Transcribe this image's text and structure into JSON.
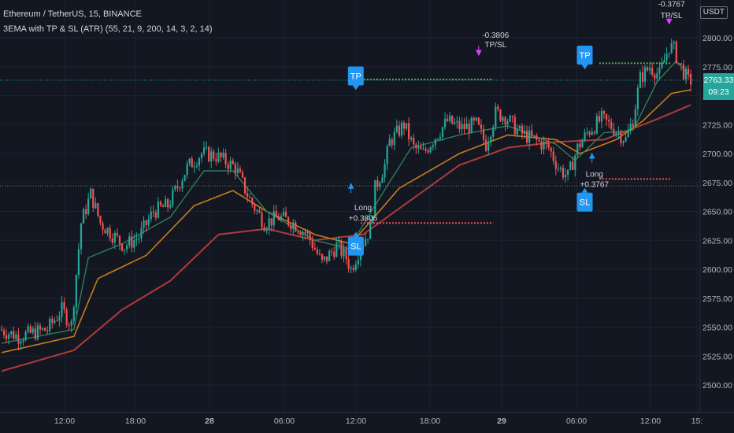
{
  "header": {
    "symbol": "Ethereum / TetherUS, 15, BINANCE",
    "indicator": "3EMA with TP & SL (ATR) (55, 21, 9, 200, 14, 3, 2, 14)"
  },
  "currency_badge": "USDT",
  "price_box": {
    "price": "2763.33",
    "countdown": "09:23"
  },
  "colors": {
    "background": "#131722",
    "up": "#26a69a",
    "down": "#ef5350",
    "ema_fast": "#2e7d5b",
    "ema_mid": "#c77b1c",
    "ema_slow": "#b03a3a",
    "signal": "#2196f3",
    "tp_line": "#4caf50",
    "sl_line": "#ef5350"
  },
  "chart_data": {
    "type": "candlestick",
    "title": "Ethereum / TetherUS, 15, BINANCE",
    "ylim": [
      2490,
      2822
    ],
    "y_ticks": [
      "2800.00",
      "2775.00",
      "2750.00",
      "2725.00",
      "2700.00",
      "2675.00",
      "2650.00",
      "2625.00",
      "2600.00",
      "2575.00",
      "2550.00",
      "2525.00",
      "2500.00"
    ],
    "x_ticks": [
      "12:00",
      "18:00",
      "28",
      "06:00",
      "12:00",
      "18:00",
      "29",
      "06:00",
      "12:00",
      "15:"
    ],
    "anchors": [
      [
        0,
        2548
      ],
      [
        8,
        2542
      ],
      [
        14,
        2545
      ],
      [
        20,
        2548
      ],
      [
        26,
        2565
      ],
      [
        30,
        2552
      ],
      [
        34,
        2640
      ],
      [
        38,
        2665
      ],
      [
        42,
        2640
      ],
      [
        46,
        2632
      ],
      [
        52,
        2620
      ],
      [
        58,
        2628
      ],
      [
        64,
        2650
      ],
      [
        70,
        2655
      ],
      [
        78,
        2688
      ],
      [
        84,
        2700
      ],
      [
        90,
        2698
      ],
      [
        98,
        2688
      ],
      [
        104,
        2660
      ],
      [
        110,
        2640
      ],
      [
        116,
        2645
      ],
      [
        122,
        2640
      ],
      [
        128,
        2630
      ],
      [
        134,
        2605
      ],
      [
        140,
        2620
      ],
      [
        144,
        2610
      ],
      [
        146,
        2600
      ],
      [
        150,
        2620
      ],
      [
        154,
        2635
      ],
      [
        156,
        2670
      ],
      [
        160,
        2690
      ],
      [
        162,
        2710
      ],
      [
        168,
        2725
      ],
      [
        172,
        2705
      ],
      [
        176,
        2700
      ],
      [
        180,
        2712
      ],
      [
        186,
        2728
      ],
      [
        192,
        2722
      ],
      [
        198,
        2725
      ],
      [
        202,
        2708
      ],
      [
        206,
        2735
      ],
      [
        210,
        2732
      ],
      [
        216,
        2718
      ],
      [
        222,
        2712
      ],
      [
        228,
        2705
      ],
      [
        232,
        2688
      ],
      [
        236,
        2680
      ],
      [
        240,
        2705
      ],
      [
        244,
        2718
      ],
      [
        250,
        2730
      ],
      [
        256,
        2720
      ],
      [
        260,
        2712
      ],
      [
        263,
        2730
      ],
      [
        266,
        2765
      ],
      [
        270,
        2775
      ],
      [
        274,
        2768
      ],
      [
        278,
        2793
      ],
      [
        280,
        2790
      ],
      [
        282,
        2778
      ],
      [
        286,
        2763
      ]
    ],
    "ema_fast": [
      [
        0,
        2536
      ],
      [
        30,
        2548
      ],
      [
        36,
        2610
      ],
      [
        50,
        2622
      ],
      [
        70,
        2645
      ],
      [
        84,
        2685
      ],
      [
        96,
        2685
      ],
      [
        110,
        2650
      ],
      [
        130,
        2625
      ],
      [
        144,
        2618
      ],
      [
        160,
        2672
      ],
      [
        170,
        2705
      ],
      [
        190,
        2716
      ],
      [
        210,
        2724
      ],
      [
        230,
        2708
      ],
      [
        238,
        2694
      ],
      [
        250,
        2718
      ],
      [
        262,
        2720
      ],
      [
        272,
        2762
      ],
      [
        280,
        2780
      ],
      [
        286,
        2766
      ]
    ],
    "ema_mid": [
      [
        0,
        2528
      ],
      [
        30,
        2542
      ],
      [
        40,
        2592
      ],
      [
        60,
        2612
      ],
      [
        80,
        2655
      ],
      [
        96,
        2668
      ],
      [
        110,
        2650
      ],
      [
        130,
        2630
      ],
      [
        145,
        2622
      ],
      [
        165,
        2670
      ],
      [
        190,
        2700
      ],
      [
        210,
        2716
      ],
      [
        230,
        2712
      ],
      [
        240,
        2700
      ],
      [
        255,
        2712
      ],
      [
        266,
        2728
      ],
      [
        278,
        2752
      ],
      [
        286,
        2755
      ]
    ],
    "ema_slow": [
      [
        0,
        2512
      ],
      [
        30,
        2530
      ],
      [
        50,
        2565
      ],
      [
        70,
        2590
      ],
      [
        90,
        2630
      ],
      [
        110,
        2635
      ],
      [
        130,
        2625
      ],
      [
        150,
        2630
      ],
      [
        170,
        2660
      ],
      [
        190,
        2690
      ],
      [
        210,
        2705
      ],
      [
        230,
        2710
      ],
      [
        250,
        2712
      ],
      [
        270,
        2728
      ],
      [
        286,
        2742
      ]
    ],
    "current_price": 2763.33,
    "price_line": 2672,
    "signals": [
      {
        "label": "TP",
        "bar": 147,
        "price": 2767
      },
      {
        "label": "SL",
        "bar": 147,
        "price": 2620
      },
      {
        "label": "TP",
        "bar": 242,
        "price": 2785
      },
      {
        "label": "SL",
        "bar": 242,
        "price": 2658
      }
    ],
    "annotations": [
      {
        "text": "Long",
        "bar": 150,
        "price": 2651
      },
      {
        "text": "+0.3806",
        "bar": 150,
        "price": 2642
      },
      {
        "text": "-0.3806",
        "bar": 205,
        "price": 2800
      },
      {
        "text": "TP/SL",
        "bar": 205,
        "price": 2792
      },
      {
        "text": "Long",
        "bar": 246,
        "price": 2680
      },
      {
        "text": "+0.3767",
        "bar": 246,
        "price": 2671
      },
      {
        "text": "-0.3767",
        "bar": 278,
        "price": 2827
      },
      {
        "text": "TP/SL",
        "bar": 278,
        "price": 2817
      }
    ],
    "levels": [
      {
        "kind": "tp",
        "start": 149,
        "end": 204,
        "price": 2764
      },
      {
        "kind": "sl",
        "start": 149,
        "end": 204,
        "price": 2640
      },
      {
        "kind": "tp",
        "start": 248,
        "end": 278,
        "price": 2778
      },
      {
        "kind": "sl",
        "start": 248,
        "end": 278,
        "price": 2678
      }
    ],
    "grid": true,
    "legend": "none"
  }
}
